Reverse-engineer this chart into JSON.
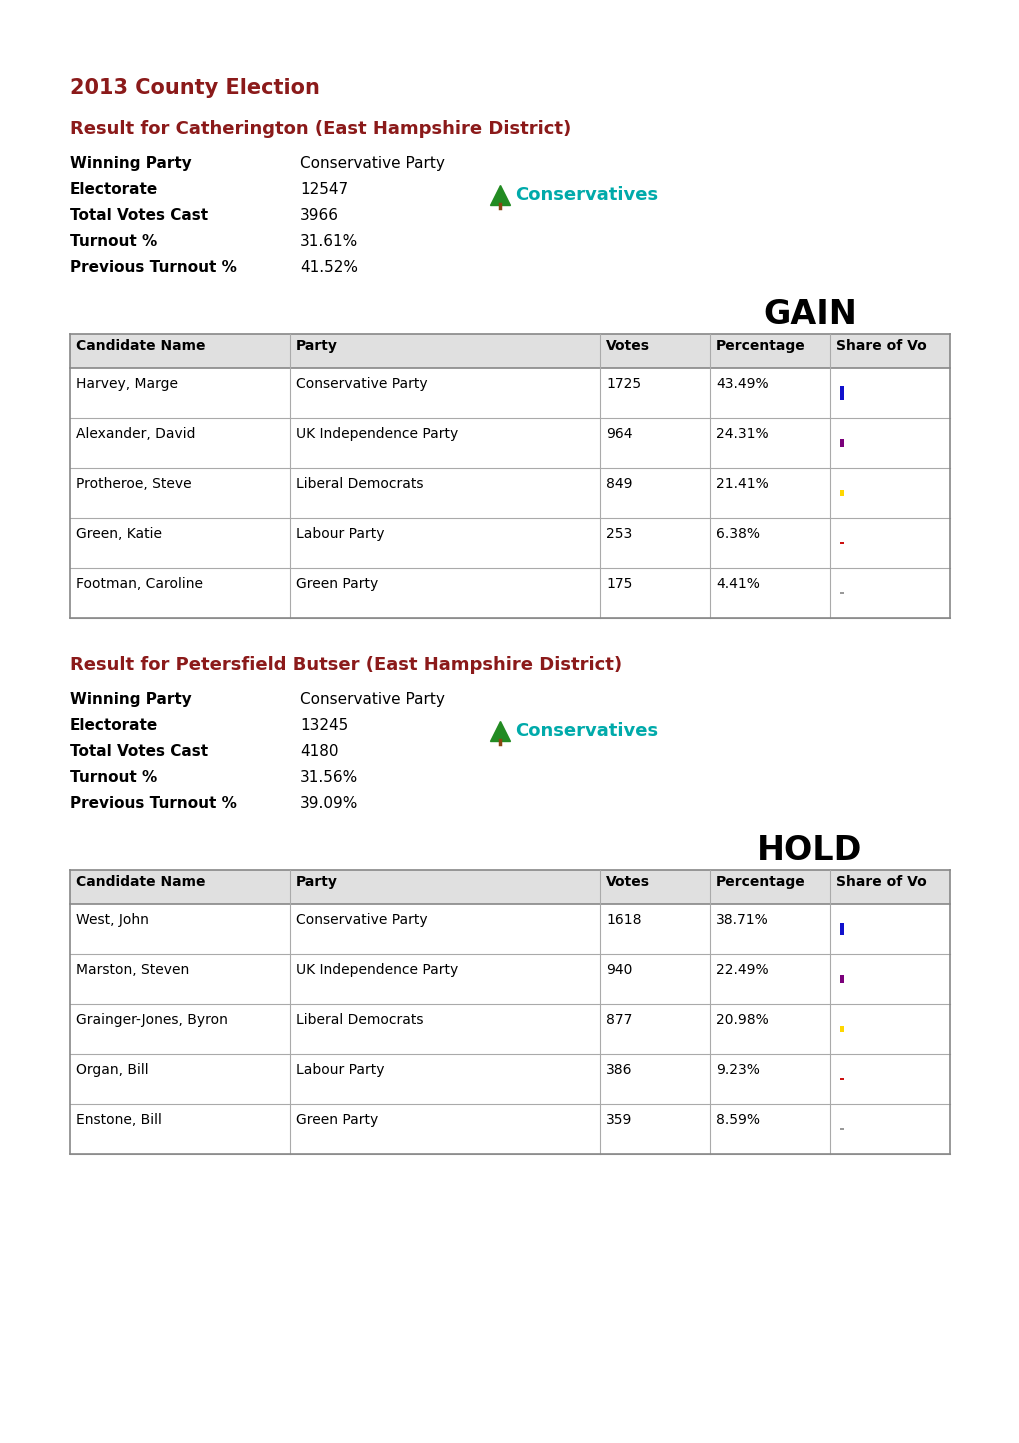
{
  "title": "2013 County Election",
  "bg_color": "#ffffff",
  "title_color": "#8B1A1A",
  "heading_color": "#8B1A1A",
  "section1": {
    "heading": "Result for Catherington (East Hampshire District)",
    "winning_party": "Conservative Party",
    "electorate": "12547",
    "total_votes": "3966",
    "turnout": "31.61%",
    "prev_turnout": "41.52%",
    "result_label": "GAIN",
    "candidates": [
      {
        "name": "Harvey, Marge",
        "party": "Conservative Party",
        "votes": "1725",
        "pct": "43.49%",
        "bar_color": "#1111CC",
        "bar_pct": 43.49
      },
      {
        "name": "Alexander, David",
        "party": "UK Independence Party",
        "votes": "964",
        "pct": "24.31%",
        "bar_color": "#7B007B",
        "bar_pct": 24.31
      },
      {
        "name": "Protheroe, Steve",
        "party": "Liberal Democrats",
        "votes": "849",
        "pct": "21.41%",
        "bar_color": "#FFD700",
        "bar_pct": 21.41
      },
      {
        "name": "Green, Katie",
        "party": "Labour Party",
        "votes": "253",
        "pct": "6.38%",
        "bar_color": "#CC1111",
        "bar_pct": 6.38
      },
      {
        "name": "Footman, Caroline",
        "party": "Green Party",
        "votes": "175",
        "pct": "4.41%",
        "bar_color": "#999999",
        "bar_pct": 4.41
      }
    ]
  },
  "section2": {
    "heading": "Result for Petersfield Butser (East Hampshire District)",
    "winning_party": "Conservative Party",
    "electorate": "13245",
    "total_votes": "4180",
    "turnout": "31.56%",
    "prev_turnout": "39.09%",
    "result_label": "HOLD",
    "candidates": [
      {
        "name": "West, John",
        "party": "Conservative Party",
        "votes": "1618",
        "pct": "38.71%",
        "bar_color": "#1111CC",
        "bar_pct": 38.71
      },
      {
        "name": "Marston, Steven",
        "party": "UK Independence Party",
        "votes": "940",
        "pct": "22.49%",
        "bar_color": "#7B007B",
        "bar_pct": 22.49
      },
      {
        "name": "Grainger-Jones, Byron",
        "party": "Liberal Democrats",
        "votes": "877",
        "pct": "20.98%",
        "bar_color": "#FFD700",
        "bar_pct": 20.98
      },
      {
        "name": "Organ, Bill",
        "party": "Labour Party",
        "votes": "386",
        "pct": "9.23%",
        "bar_color": "#CC1111",
        "bar_pct": 9.23
      },
      {
        "name": "Enstone, Bill",
        "party": "Green Party",
        "votes": "359",
        "pct": "8.59%",
        "bar_color": "#999999",
        "bar_pct": 8.59
      }
    ]
  },
  "col_headers": [
    "Candidate Name",
    "Party",
    "Votes",
    "Percentage",
    "Share of Vo"
  ],
  "table_header_bg": "#e0e0e0",
  "table_border_color": "#999999",
  "cons_text_color": "#00AAAA"
}
